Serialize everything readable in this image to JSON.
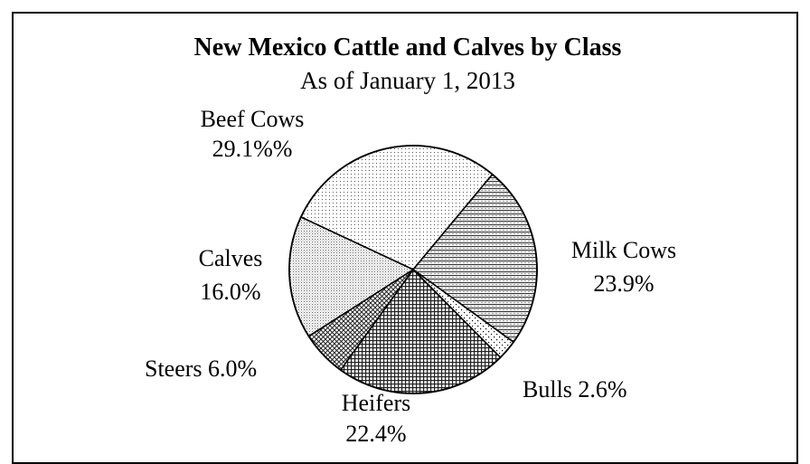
{
  "chart_data": {
    "type": "pie",
    "title": "New Mexico Cattle and Calves by Class",
    "subtitle": "As of January 1, 2013",
    "slices": [
      {
        "name": "Beef Cows",
        "value": 29.1,
        "label_line1": "Beef Cows",
        "label_line2": "29.1%%",
        "pattern": "dots-light"
      },
      {
        "name": "Milk Cows",
        "value": 23.9,
        "label_line1": "Milk Cows",
        "label_line2": "23.9%",
        "pattern": "hlines"
      },
      {
        "name": "Bulls",
        "value": 2.6,
        "label_line1": "Bulls 2.6%",
        "label_line2": "",
        "pattern": "sparse-dots"
      },
      {
        "name": "Heifers",
        "value": 22.4,
        "label_line1": "Heifers",
        "label_line2": "22.4%",
        "pattern": "grid"
      },
      {
        "name": "Steers",
        "value": 6.0,
        "label_line1": "Steers 6.0%",
        "label_line2": "",
        "pattern": "crosshatch"
      },
      {
        "name": "Calves",
        "value": 16.0,
        "label_line1": "Calves",
        "label_line2": "16.0%",
        "pattern": "dots-medium"
      }
    ],
    "start_angle_deg": 0,
    "direction": "clockwise",
    "colors": {
      "stroke": "#000000",
      "fill_base": "#ffffff",
      "pattern": "#000000"
    }
  }
}
